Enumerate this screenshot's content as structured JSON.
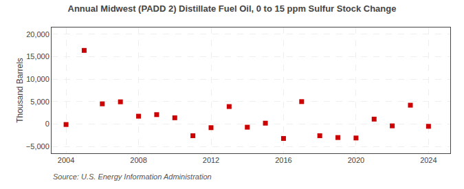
{
  "chart_data": {
    "type": "scatter",
    "title": "Annual Midwest (PADD 2) Distillate Fuel Oil, 0 to 15 ppm Sulfur Stock Change",
    "ylabel": "Thousand Barrels",
    "annotations": [
      "Source: U.S. Energy Information Administration"
    ],
    "x": [
      2004,
      2005,
      2006,
      2007,
      2008,
      2009,
      2010,
      2011,
      2012,
      2013,
      2014,
      2015,
      2016,
      2017,
      2018,
      2019,
      2020,
      2021,
      2022,
      2023,
      2024
    ],
    "values": [
      -100,
      16400,
      4500,
      4950,
      1750,
      2100,
      1400,
      -2600,
      -800,
      3900,
      -700,
      200,
      -3200,
      5000,
      -2600,
      -3000,
      -3100,
      1100,
      -400,
      4200,
      -500
    ],
    "color": "#cc0000",
    "marker": "square",
    "xlim": [
      2003.2,
      2025.2
    ],
    "xticks": [
      2004,
      2008,
      2012,
      2016,
      2020,
      2024
    ],
    "ylim": [
      -6500,
      21500
    ],
    "yticks": [
      {
        "value": -5000,
        "label": "−5,000"
      },
      0,
      {
        "value": 5000,
        "label": "5,000"
      },
      {
        "value": 10000,
        "label": "10,000"
      },
      {
        "value": 15000,
        "label": "15,000"
      },
      {
        "value": 20000,
        "label": "20,000"
      }
    ],
    "grid": true
  }
}
